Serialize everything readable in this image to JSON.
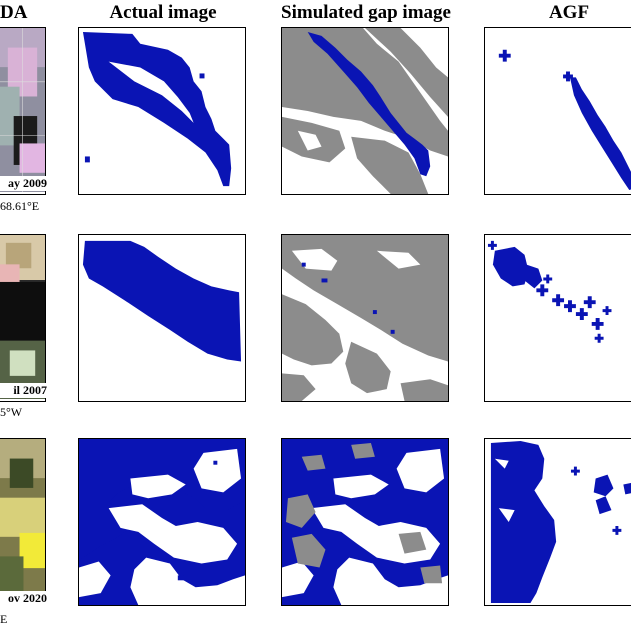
{
  "headers": {
    "col0": "DA",
    "col1": "Actual image",
    "col2": "Simulated gap image",
    "col3": "AGF"
  },
  "rows": [
    {
      "date": "ay 2009",
      "coord": "68.61°E"
    },
    {
      "date": "il 2007",
      "coord": "5°W"
    },
    {
      "date": "ov 2020",
      "coord": "E"
    }
  ],
  "colors": {
    "water": "#0a14b4",
    "gap": "#8c8c8c",
    "background": "#ffffff"
  }
}
